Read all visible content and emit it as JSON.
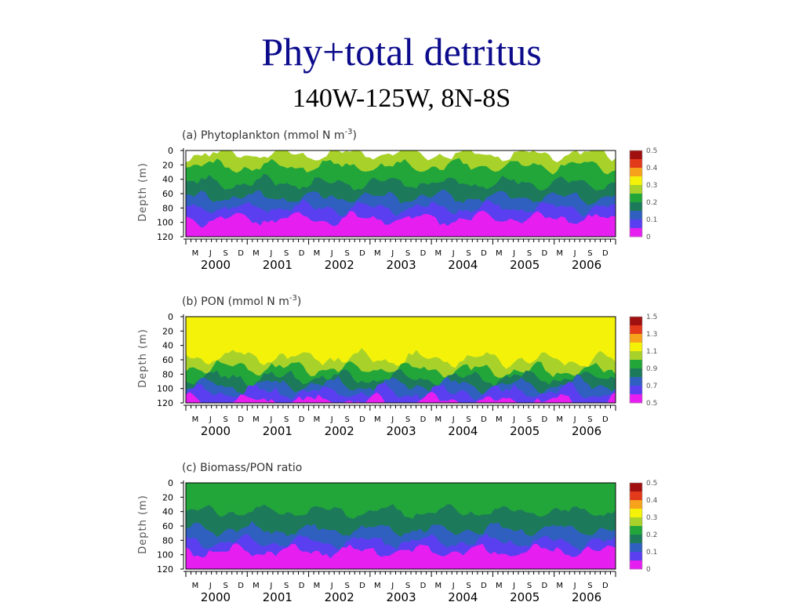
{
  "title": "Phy+total detritus",
  "subtitle": "140W-125W, 8N-8S",
  "axes": {
    "ylabel": "Depth (m)",
    "depth_ticks": [
      "0",
      "20",
      "40",
      "60",
      "80",
      "100",
      "120"
    ],
    "month_ticks": [
      "M",
      "J",
      "S",
      "D",
      "M",
      "J",
      "S",
      "D",
      "M",
      "J",
      "S",
      "D",
      "M",
      "J",
      "S",
      "D",
      "M",
      "J",
      "S",
      "D",
      "M",
      "J",
      "S",
      "D",
      "M",
      "J",
      "S",
      "D"
    ],
    "year_labels": [
      "2000",
      "2001",
      "2002",
      "2003",
      "2004",
      "2005",
      "2006"
    ]
  },
  "chart_data": [
    {
      "type": "heatmap",
      "panel_label": "(a) Phytoplankton (mmol N m",
      "unit_exponent": "-3",
      "panel_label_close": ")",
      "x": [
        "2000",
        "2001",
        "2002",
        "2003",
        "2004",
        "2005",
        "2006"
      ],
      "ylim": [
        120,
        0
      ],
      "colorbar": {
        "labels": [
          "0.5",
          "0.4",
          "0.3",
          "0.2",
          "0.1",
          "0"
        ],
        "colors": [
          "#a01010",
          "#e23a1a",
          "#f7a21b",
          "#f5f20a",
          "#a8d22a",
          "#22a63a",
          "#1c7a5a",
          "#2f60c0",
          "#5a3ff0",
          "#e61ef0"
        ]
      },
      "layers": [
        {
          "value": "0 - 0.05",
          "color": "#e61ef0",
          "top_depth": 95
        },
        {
          "value": "0.05 - 0.10",
          "color": "#5a3ff0",
          "top_depth": 80
        },
        {
          "value": "0.10 - 0.15",
          "color": "#2f60c0",
          "top_depth": 65
        },
        {
          "value": "0.15 - 0.20",
          "color": "#1c7a5a",
          "top_depth": 45
        },
        {
          "value": "0.20 - 0.25",
          "color": "#22a63a",
          "top_depth": 22
        },
        {
          "value": "0.25 - 0.30",
          "color": "#a8d22a",
          "top_depth": 5
        }
      ]
    },
    {
      "type": "heatmap",
      "panel_label": "(b) PON (mmol N m",
      "unit_exponent": "-3",
      "panel_label_close": ")",
      "x": [
        "2000",
        "2001",
        "2002",
        "2003",
        "2004",
        "2005",
        "2006"
      ],
      "ylim": [
        120,
        0
      ],
      "colorbar": {
        "labels": [
          "1.5",
          "1.3",
          "1.1",
          "0.9",
          "0.7",
          "0.5"
        ],
        "colors": [
          "#a01010",
          "#e23a1a",
          "#f7a21b",
          "#f5f20a",
          "#a8d22a",
          "#22a63a",
          "#1c7a5a",
          "#2f60c0",
          "#5a3ff0",
          "#e61ef0"
        ]
      },
      "layers": [
        {
          "value": "0.5 - 0.6",
          "color": "#e61ef0",
          "top_depth": 118
        },
        {
          "value": "0.6 - 0.7",
          "color": "#5a3ff0",
          "top_depth": 105
        },
        {
          "value": "0.7 - 0.8",
          "color": "#2f60c0",
          "top_depth": 95
        },
        {
          "value": "0.8 - 0.9",
          "color": "#1c7a5a",
          "top_depth": 85
        },
        {
          "value": "0.9 - 1.0",
          "color": "#22a63a",
          "top_depth": 70
        },
        {
          "value": "1.0 - 1.1",
          "color": "#a8d22a",
          "top_depth": 55
        },
        {
          "value": "1.1 - 1.2",
          "color": "#f5f20a",
          "top_depth": 0
        }
      ]
    },
    {
      "type": "heatmap",
      "panel_label": "(c) Biomass/PON ratio",
      "unit_exponent": "",
      "panel_label_close": "",
      "x": [
        "2000",
        "2001",
        "2002",
        "2003",
        "2004",
        "2005",
        "2006"
      ],
      "ylim": [
        120,
        0
      ],
      "colorbar": {
        "labels": [
          "0.5",
          "0.4",
          "0.3",
          "0.2",
          "0.1",
          "0"
        ],
        "colors": [
          "#a01010",
          "#e23a1a",
          "#f7a21b",
          "#f5f20a",
          "#a8d22a",
          "#22a63a",
          "#1c7a5a",
          "#2f60c0",
          "#5a3ff0",
          "#e61ef0"
        ]
      },
      "layers": [
        {
          "value": "0 - 0.05",
          "color": "#e61ef0",
          "top_depth": 95
        },
        {
          "value": "0.05 - 0.10",
          "color": "#5a3ff0",
          "top_depth": 82
        },
        {
          "value": "0.10 - 0.15",
          "color": "#2f60c0",
          "top_depth": 65
        },
        {
          "value": "0.15 - 0.20",
          "color": "#1c7a5a",
          "top_depth": 40
        },
        {
          "value": "0.20 - 0.25",
          "color": "#22a63a",
          "top_depth": 0
        }
      ]
    }
  ]
}
